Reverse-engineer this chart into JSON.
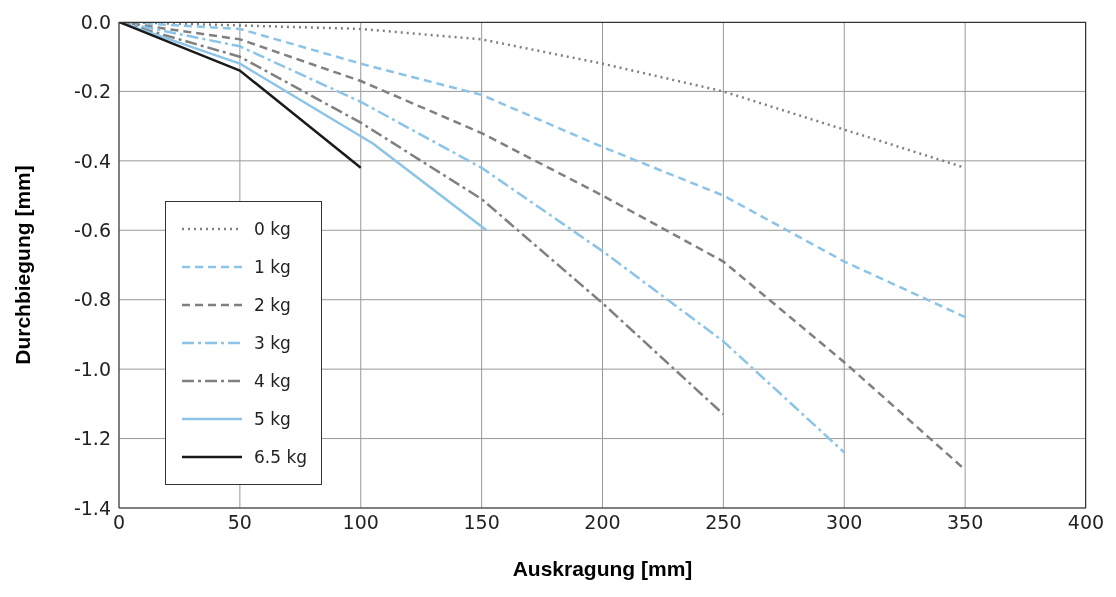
{
  "chart_data": {
    "type": "line",
    "xlabel": "Auskragung [mm]",
    "ylabel": "Durchbiegung [mm]",
    "xlim": [
      0,
      400
    ],
    "xticks": [
      0,
      50,
      100,
      150,
      200,
      250,
      300,
      350,
      400
    ],
    "ylim": [
      -1.4,
      0
    ],
    "yticks": [
      {
        "value": 0,
        "label": "0.0"
      },
      {
        "value": -0.2,
        "label": "-0.2"
      },
      {
        "value": -0.4,
        "label": "-0.4"
      },
      {
        "value": -0.6,
        "label": "-0.6"
      },
      {
        "value": -0.8,
        "label": "-0.8"
      },
      {
        "value": -1.0,
        "label": "-1.0"
      },
      {
        "value": -1.2,
        "label": "-1.2"
      },
      {
        "value": -1.4,
        "label": "-1.4"
      }
    ],
    "grid": true,
    "legend": "bottom left",
    "marker": "none",
    "series": [
      {
        "name": "0 kg",
        "color": "#808080",
        "line_style": "dotted",
        "x": [
          0,
          50,
          100,
          150,
          200,
          250,
          300,
          350
        ],
        "values": [
          0,
          -0.01,
          -0.02,
          -0.05,
          -0.12,
          -0.2,
          -0.31,
          -0.42
        ]
      },
      {
        "name": "1 kg",
        "color": "#8cc4e8",
        "line_style": "dashed",
        "x": [
          0,
          50,
          100,
          150,
          200,
          250,
          300,
          350
        ],
        "values": [
          0,
          -0.02,
          -0.12,
          -0.21,
          -0.36,
          -0.5,
          -0.69,
          -0.85
        ]
      },
      {
        "name": "2 kg",
        "color": "#808080",
        "line_style": "dashed",
        "x": [
          0,
          50,
          100,
          150,
          200,
          250,
          300,
          350
        ],
        "values": [
          0,
          -0.05,
          -0.17,
          -0.32,
          -0.5,
          -0.69,
          -0.98,
          -1.29
        ]
      },
      {
        "name": "3 kg",
        "color": "#8cc4e8",
        "line_style": "dashdot",
        "x": [
          0,
          50,
          100,
          150,
          200,
          250,
          300
        ],
        "values": [
          0,
          -0.07,
          -0.23,
          -0.42,
          -0.66,
          -0.92,
          -1.24
        ]
      },
      {
        "name": "4 kg",
        "color": "#808080",
        "line_style": "dashdot",
        "x": [
          0,
          50,
          100,
          150,
          200,
          250
        ],
        "values": [
          0,
          -0.1,
          -0.29,
          -0.51,
          -0.81,
          -1.13
        ]
      },
      {
        "name": "5 kg",
        "color": "#8cc4e8",
        "line_style": "solid",
        "x": [
          0,
          50,
          105,
          152
        ],
        "values": [
          0,
          -0.12,
          -0.35,
          -0.6
        ]
      },
      {
        "name": "6.5 kg",
        "color": "#1a1a1a",
        "line_style": "solid",
        "x": [
          0,
          50,
          100
        ],
        "values": [
          0,
          -0.14,
          -0.42
        ]
      }
    ]
  }
}
